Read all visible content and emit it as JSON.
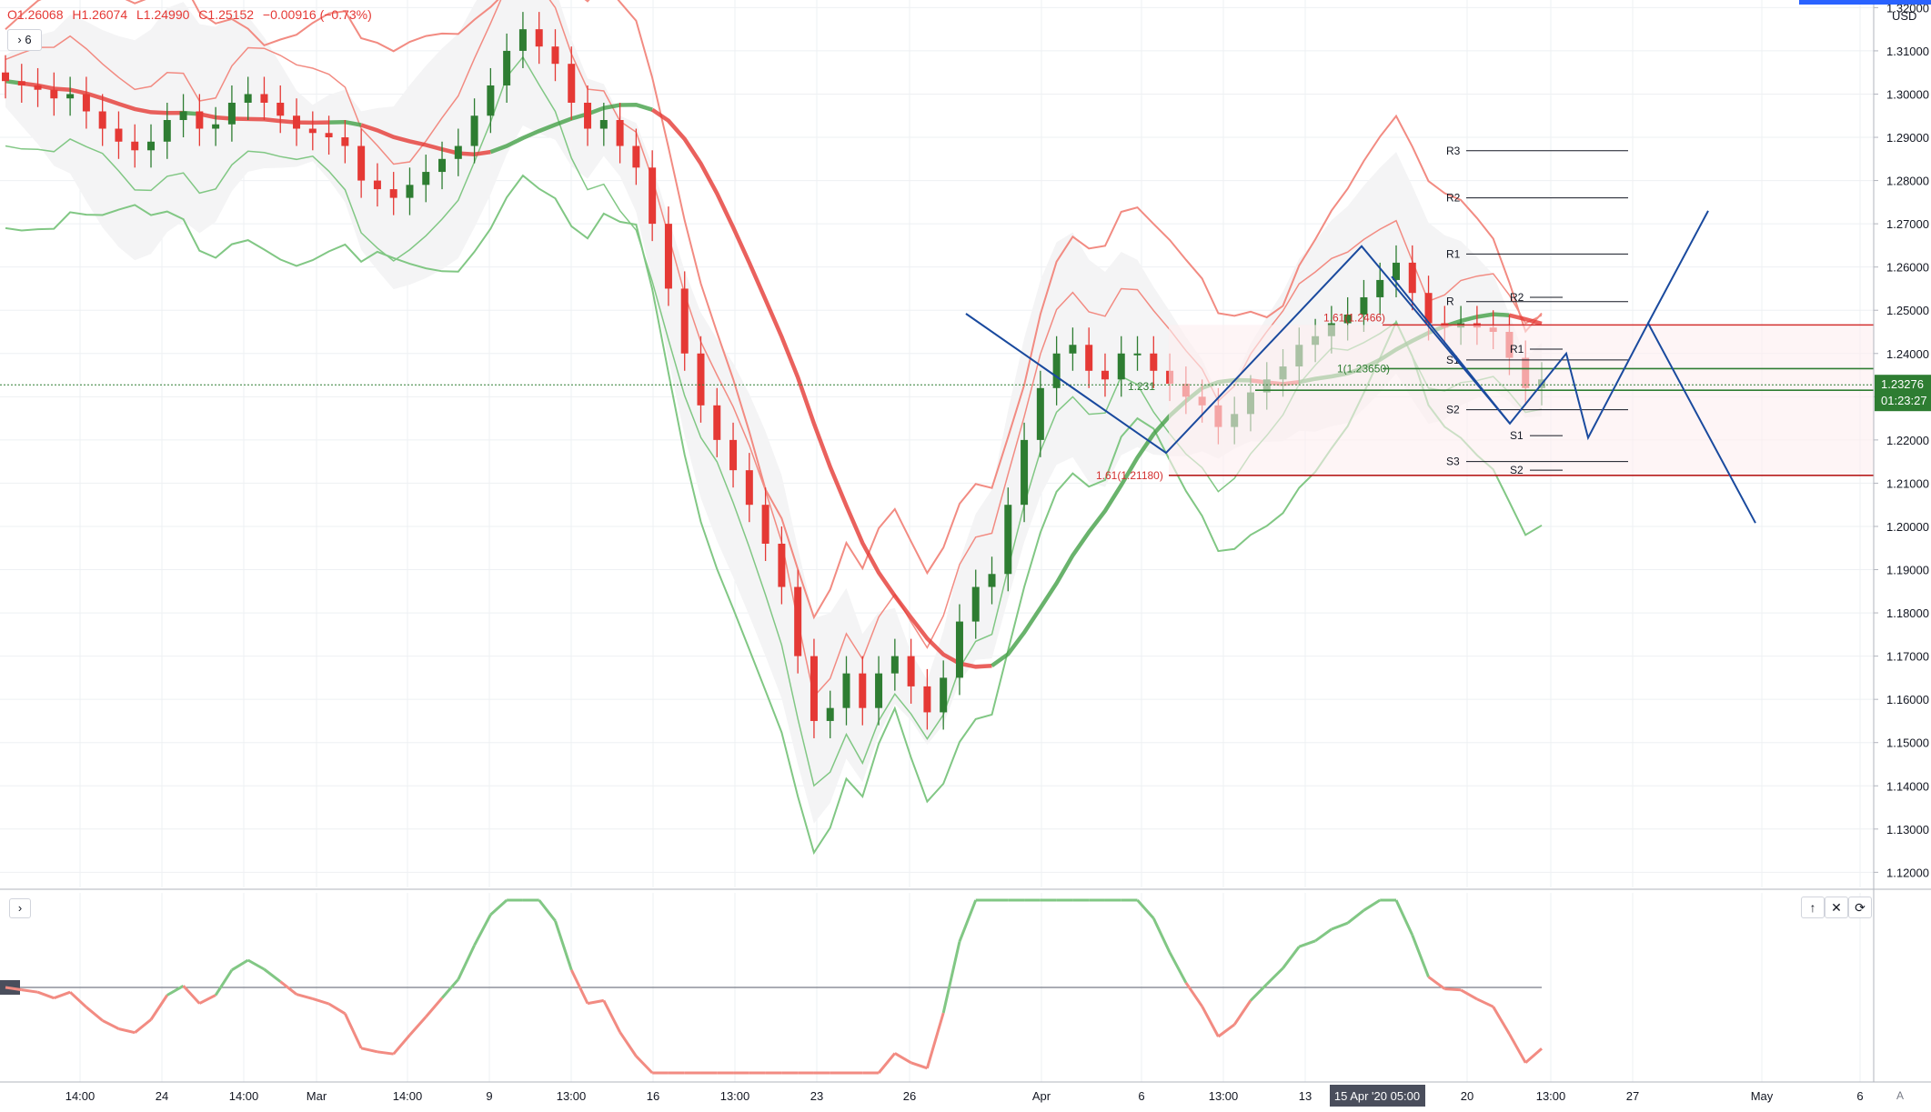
{
  "legend": {
    "open": "O1.26068",
    "high": "H1.26074",
    "low": "L1.24990",
    "close": "C1.25152",
    "change": "−0.00916 (−0.73%)"
  },
  "pane_toggle": "› 6",
  "sub_toggle": "›",
  "currency": "USD",
  "sub_buttons": [
    "↑",
    "✕",
    "⟳"
  ],
  "corner": "A",
  "colors": {
    "up": "#2e7d32",
    "down": "#e53935",
    "pattern": "#1a4a9e",
    "band_fill": "#f4f4f5"
  },
  "chart_data": {
    "type": "candlestick",
    "y_axis": {
      "ticks": [
        "1.32000",
        "1.31000",
        "1.30000",
        "1.29000",
        "1.28000",
        "1.27000",
        "1.26000",
        "1.25000",
        "1.24000",
        "1.23000",
        "1.22000",
        "1.21000",
        "1.20000",
        "1.19000",
        "1.18000",
        "1.17000",
        "1.16000",
        "1.15000",
        "1.14000",
        "1.13000",
        "1.12000"
      ],
      "range": [
        1.1165,
        1.3205
      ]
    },
    "x_axis": {
      "ticks": [
        "14:00",
        "24",
        "14:00",
        "Mar",
        "14:00",
        "9",
        "13:00",
        "16",
        "13:00",
        "23",
        "26",
        "Apr",
        "6",
        "13:00",
        "13",
        "20",
        "13:00",
        "27",
        "May",
        "6"
      ],
      "highlight": "15 Apr '20   05:00"
    },
    "price_label": "1.23276",
    "time_label": "01:23:27",
    "fib_labels": [
      "1.61(1.2466)",
      "1(1.23650)",
      "1.231",
      "1.61(1.21180)"
    ],
    "pivot_labels": [
      "R3",
      "R2",
      "R1",
      "R",
      "S1",
      "S2",
      "S3",
      "R2",
      "R1",
      "S1",
      "S2"
    ],
    "approx_close_path": [
      1.303,
      1.302,
      1.301,
      1.299,
      1.3,
      1.296,
      1.292,
      1.289,
      1.287,
      1.289,
      1.294,
      1.296,
      1.292,
      1.293,
      1.298,
      1.3,
      1.298,
      1.295,
      1.292,
      1.291,
      1.29,
      1.288,
      1.28,
      1.278,
      1.276,
      1.279,
      1.282,
      1.285,
      1.288,
      1.295,
      1.302,
      1.31,
      1.315,
      1.311,
      1.307,
      1.298,
      1.292,
      1.294,
      1.288,
      1.283,
      1.27,
      1.255,
      1.24,
      1.228,
      1.22,
      1.213,
      1.205,
      1.196,
      1.186,
      1.17,
      1.155,
      1.158,
      1.166,
      1.158,
      1.166,
      1.17,
      1.163,
      1.157,
      1.165,
      1.178,
      1.186,
      1.189,
      1.205,
      1.22,
      1.232,
      1.24,
      1.242,
      1.236,
      1.234,
      1.24,
      1.24,
      1.236,
      1.233,
      1.23,
      1.228,
      1.223,
      1.226,
      1.231,
      1.234,
      1.237,
      1.242,
      1.244,
      1.247,
      1.249,
      1.253,
      1.257,
      1.261,
      1.254,
      1.247,
      1.246,
      1.247,
      1.246,
      1.245,
      1.239,
      1.232,
      1.234
    ],
    "sub_oscillator": {
      "midline": "0"
    }
  }
}
